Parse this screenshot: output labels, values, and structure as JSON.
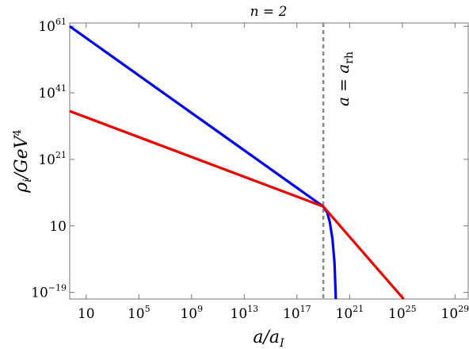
{
  "chart_data": {
    "type": "line",
    "title": "n = 2",
    "xlabel": "a/a_I",
    "ylabel": "ρ_i/GeV^4",
    "x_scale": "log10",
    "y_scale": "log10",
    "xlim_log10": [
      -0.25,
      30
    ],
    "ylim_log10": [
      -21,
      62
    ],
    "x_ticks": [
      {
        "exp": 1,
        "mantissa": "10",
        "sup": ""
      },
      {
        "exp": 5,
        "mantissa": "10",
        "sup": "5"
      },
      {
        "exp": 9,
        "mantissa": "10",
        "sup": "9"
      },
      {
        "exp": 13,
        "mantissa": "10",
        "sup": "13"
      },
      {
        "exp": 17,
        "mantissa": "10",
        "sup": "17"
      },
      {
        "exp": 21,
        "mantissa": "10",
        "sup": "21"
      },
      {
        "exp": 25,
        "mantissa": "10",
        "sup": "25"
      },
      {
        "exp": 29,
        "mantissa": "10",
        "sup": "29"
      }
    ],
    "y_ticks": [
      {
        "exp": -19,
        "mantissa": "10",
        "sup": "−19"
      },
      {
        "exp": 1,
        "mantissa": "10",
        "sup": ""
      },
      {
        "exp": 21,
        "mantissa": "10",
        "sup": "21"
      },
      {
        "exp": 41,
        "mantissa": "10",
        "sup": "41"
      },
      {
        "exp": 61,
        "mantissa": "10",
        "sup": "61"
      }
    ],
    "series": [
      {
        "color": "#0000ee",
        "points_log10": [
          [
            -0.25,
            61
          ],
          [
            19.0,
            6.8
          ],
          [
            19.3,
            5.0
          ],
          [
            19.5,
            2.0
          ],
          [
            19.7,
            -3.0
          ],
          [
            19.85,
            -10.0
          ],
          [
            19.95,
            -21.0
          ]
        ]
      },
      {
        "color": "#ee0000",
        "points_log10": [
          [
            -0.25,
            35.5
          ],
          [
            19.0,
            6.8
          ],
          [
            25.1,
            -21.0
          ]
        ]
      }
    ],
    "vline": {
      "x_log10": 19.0,
      "style": "dashed",
      "color": "#888888",
      "label": "a = a_rh"
    }
  }
}
